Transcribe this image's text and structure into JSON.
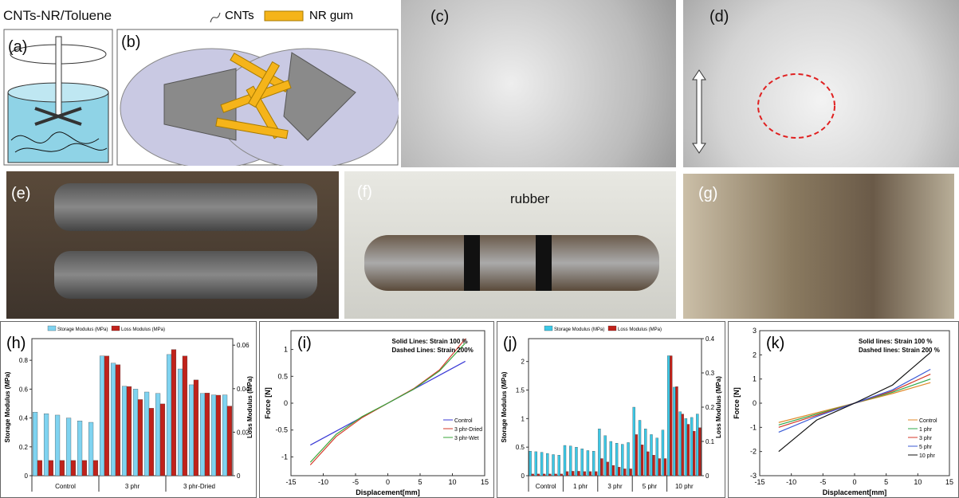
{
  "header": {
    "title": "CNTs-NR/Toluene",
    "legend_cnts": "CNTs",
    "legend_nr": "NR gum"
  },
  "panels": {
    "a": "(a)",
    "b": "(b)",
    "c": "(c)",
    "d": "(d)",
    "e": "(e)",
    "f": "(f)",
    "g": "(g)",
    "f_note": "rubber"
  },
  "chart_data": [
    {
      "type": "bar",
      "label": "(h)",
      "group_labels": [
        "Control",
        "3 phr",
        "3 phr-Dried"
      ],
      "series": [
        {
          "name": "Storage Modulus (MPa)",
          "color": "#7fd3f0",
          "values": [
            0.44,
            0.43,
            0.42,
            0.4,
            0.38,
            0.37,
            0.83,
            0.78,
            0.62,
            0.6,
            0.58,
            0.57,
            0.84,
            0.74,
            0.63,
            0.57,
            0.56,
            0.56
          ]
        },
        {
          "name": "Loss Modulus (MPa)",
          "color": "#c0221b",
          "axis": "y2",
          "values": [
            0.007,
            0.007,
            0.007,
            0.007,
            0.007,
            0.007,
            0.055,
            0.051,
            0.041,
            0.035,
            0.031,
            0.033,
            0.058,
            0.055,
            0.044,
            0.038,
            0.037,
            0.032
          ]
        }
      ],
      "ylabel": "Storage Modulus (MPa)",
      "y2label": "Loss Modulus (MPa)",
      "ylim": [
        0,
        0.95
      ],
      "yticks": [
        0,
        0.2,
        0.4,
        0.6,
        0.8
      ],
      "y2lim": [
        0,
        0.063
      ],
      "y2ticks": [
        0,
        0.02,
        0.04,
        0.06
      ]
    },
    {
      "type": "line",
      "label": "(i)",
      "x": [
        -12,
        -8,
        -4,
        0,
        4,
        8,
        12
      ],
      "series": [
        {
          "name": "Control",
          "color": "#3a3ad6",
          "values": [
            -0.78,
            -0.52,
            -0.26,
            0,
            0.26,
            0.52,
            0.78
          ]
        },
        {
          "name": "3 phr-Dried",
          "color": "#d43a2a",
          "values": [
            -1.15,
            -0.62,
            -0.27,
            0,
            0.27,
            0.62,
            1.2
          ]
        },
        {
          "name": "3 phr-Wet",
          "color": "#3aa63a",
          "values": [
            -1.1,
            -0.58,
            -0.25,
            0,
            0.26,
            0.6,
            1.12
          ]
        }
      ],
      "annotations": [
        "Solid Lines: Strain 100 %",
        "Dashed Lines: Strain 200%"
      ],
      "xlabel": "Displacement[mm]",
      "ylabel": "Force [N]",
      "xlim": [
        -15,
        15
      ],
      "xticks": [
        -15,
        -10,
        -5,
        0,
        5,
        10,
        15
      ],
      "ylim": [
        -1.35,
        1.35
      ],
      "yticks": [
        -1,
        -0.5,
        0,
        0.5,
        1
      ]
    },
    {
      "type": "bar",
      "label": "(j)",
      "group_labels": [
        "Control",
        "1 phr",
        "3 phr",
        "5 phr",
        "10 phr"
      ],
      "series": [
        {
          "name": "Storage Modulus (MPa)",
          "color": "#3cc8e6",
          "values": [
            0.43,
            0.42,
            0.41,
            0.39,
            0.37,
            0.36,
            0.53,
            0.52,
            0.5,
            0.47,
            0.44,
            0.43,
            0.82,
            0.7,
            0.6,
            0.57,
            0.55,
            0.58,
            1.2,
            0.97,
            0.82,
            0.72,
            0.66,
            0.8,
            2.1,
            1.55,
            1.12,
            1.0,
            1.02,
            1.08
          ]
        },
        {
          "name": "Loss Modulus (MPa)",
          "color": "#c0221b",
          "axis": "y2",
          "values": [
            0.005,
            0.005,
            0.005,
            0.005,
            0.005,
            0.005,
            0.012,
            0.013,
            0.013,
            0.012,
            0.012,
            0.012,
            0.05,
            0.04,
            0.03,
            0.025,
            0.02,
            0.02,
            0.12,
            0.09,
            0.07,
            0.06,
            0.05,
            0.05,
            0.35,
            0.26,
            0.18,
            0.15,
            0.13,
            0.14
          ]
        }
      ],
      "ylabel": "Storage Modulus (MPa)",
      "y2label": "Loss Modulus (MPa)",
      "ylim": [
        0,
        2.4
      ],
      "yticks": [
        0,
        0.5,
        1,
        1.5,
        2
      ],
      "y2lim": [
        0,
        0.4
      ],
      "y2ticks": [
        0,
        0.1,
        0.2,
        0.3,
        0.4
      ]
    },
    {
      "type": "line",
      "label": "(k)",
      "x": [
        -12,
        -6,
        0,
        6,
        12
      ],
      "series": [
        {
          "name": "Control",
          "color": "#e08a2a",
          "values": [
            -0.8,
            -0.4,
            0,
            0.4,
            0.85
          ]
        },
        {
          "name": "1 phr",
          "color": "#2fa84a",
          "values": [
            -0.9,
            -0.45,
            0,
            0.45,
            1.0
          ]
        },
        {
          "name": "3 phr",
          "color": "#d43a2a",
          "values": [
            -1.0,
            -0.5,
            0,
            0.5,
            1.2
          ]
        },
        {
          "name": "5 phr",
          "color": "#3a5ad6",
          "values": [
            -1.2,
            -0.55,
            0,
            0.55,
            1.4
          ]
        },
        {
          "name": "10 phr",
          "color": "#111111",
          "values": [
            -2.0,
            -0.7,
            0,
            0.75,
            2.1
          ]
        }
      ],
      "annotations": [
        "Solid lines: Strain 100 %",
        "Dashed lines: Strain 200 %"
      ],
      "xlabel": "Displacement[mm]",
      "ylabel": "Force [N]",
      "xlim": [
        -15,
        15
      ],
      "xticks": [
        -15,
        -10,
        -5,
        0,
        5,
        10,
        15
      ],
      "ylim": [
        -3,
        3
      ],
      "yticks": [
        -3,
        -2,
        -1,
        0,
        1,
        2,
        3
      ]
    }
  ]
}
